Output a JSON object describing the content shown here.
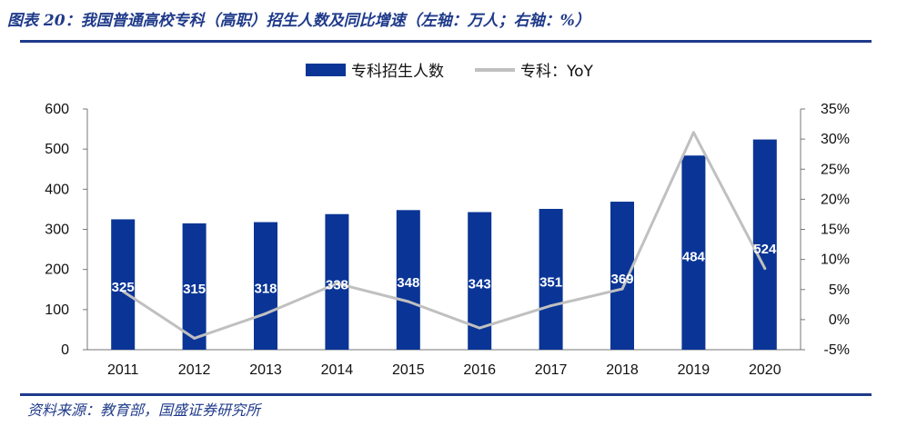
{
  "header": {
    "title": "图表 20：我国普通高校专科（高职）招生人数及同比增速（左轴：万人；右轴：%）"
  },
  "footer": {
    "source": "资料来源：教育部，国盛证券研究所"
  },
  "colors": {
    "bar": "#0a3596",
    "line": "#c0c0c0",
    "rule": "#1f3a8a"
  },
  "chart_data": {
    "type": "bar",
    "categories": [
      "2011",
      "2012",
      "2013",
      "2014",
      "2015",
      "2016",
      "2017",
      "2018",
      "2019",
      "2020"
    ],
    "series": [
      {
        "name": "专科招生人数",
        "type": "bar",
        "axis": "left",
        "values": [
          325,
          315,
          318,
          338,
          348,
          343,
          351,
          369,
          484,
          524
        ],
        "data_labels": [
          "325",
          "315",
          "318",
          "338",
          "348",
          "343",
          "351",
          "369",
          "484",
          "524"
        ]
      },
      {
        "name": "专科：YoY",
        "type": "line",
        "axis": "right",
        "values": [
          4.7,
          -3.1,
          1.0,
          6.0,
          3.0,
          -1.4,
          2.3,
          5.1,
          31.1,
          8.5
        ]
      }
    ],
    "y_left": {
      "ylim": [
        0,
        600
      ],
      "ticks": [
        "0",
        "100",
        "200",
        "300",
        "400",
        "500",
        "600"
      ]
    },
    "y_right": {
      "ylim": [
        -5,
        35
      ],
      "ticks": [
        "-5%",
        "0%",
        "5%",
        "10%",
        "15%",
        "20%",
        "25%",
        "30%",
        "35%"
      ]
    },
    "legend_position": "top-center",
    "grid": false
  }
}
